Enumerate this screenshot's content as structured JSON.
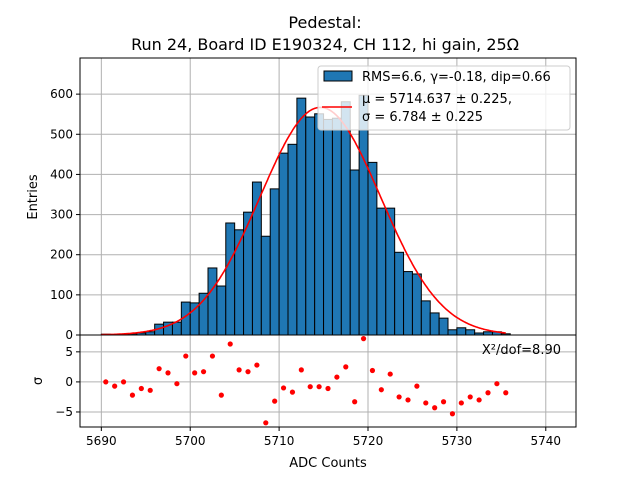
{
  "chart_data": [
    {
      "type": "bar",
      "title_line1": "Pedestal:",
      "title_line2": "Run 24, Board ID E190324, CH 112, hi gain, 25Ω",
      "xlabel": "ADC Counts",
      "ylabel": "Entries",
      "xlim": [
        5687.6,
        5743.4
      ],
      "ylim": [
        0,
        690
      ],
      "grid": true,
      "bin_edges_start": 5690,
      "bin_width": 1,
      "values": [
        2,
        1,
        2,
        3,
        5,
        8,
        27,
        32,
        32,
        82,
        80,
        104,
        167,
        122,
        279,
        262,
        306,
        381,
        246,
        364,
        453,
        475,
        590,
        543,
        551,
        537,
        540,
        581,
        411,
        597,
        430,
        316,
        316,
        206,
        158,
        152,
        85,
        55,
        42,
        13,
        18,
        13,
        5,
        8,
        8,
        3
      ],
      "yticks": [
        0,
        100,
        200,
        300,
        400,
        500,
        600
      ],
      "ytick_labels": [
        "0",
        "100",
        "200",
        "300",
        "400",
        "500",
        "600"
      ],
      "fit": {
        "type": "gaussian",
        "mu": 5714.637,
        "sigma": 6.784,
        "amplitude": 567,
        "range": [
          5690,
          5735.5
        ]
      },
      "legend": {
        "placement": "top-right",
        "hist_label": "RMS=6.6, γ=-0.18, dip=0.66",
        "fit_label_line1": "μ = 5714.637 ± 0.225,",
        "fit_label_line2": "σ = 6.784 ± 0.225"
      },
      "colors": {
        "bar": "#1f77b4",
        "fit": "#ff0000"
      }
    },
    {
      "type": "scatter",
      "ylabel": "σ",
      "xlabel": "ADC Counts",
      "xlim": [
        5687.6,
        5743.4
      ],
      "ylim": [
        -7.5,
        7.8
      ],
      "grid": true,
      "x_start": 5690.5,
      "x_step": 1,
      "values": [
        0,
        -0.7,
        0,
        -2.2,
        -1.1,
        -1.4,
        2.2,
        1.5,
        -0.3,
        4.3,
        1.5,
        1.7,
        4.3,
        -2.2,
        6.3,
        2.0,
        1.7,
        2.8,
        -6.8,
        -3.2,
        -1.0,
        -1.7,
        2.0,
        -0.8,
        -0.8,
        -1.1,
        0.8,
        2.5,
        -3.3,
        7.2,
        1.9,
        -1.3,
        1.3,
        -2.5,
        -3.0,
        -0.7,
        -3.5,
        -4.3,
        -3.3,
        -5.3,
        -3.5,
        -2.5,
        -3.0,
        -1.8,
        -0.3,
        -1.8
      ],
      "yticks": [
        -5,
        0,
        5
      ],
      "ytick_labels": [
        "−5",
        "0",
        "5"
      ],
      "xticks": [
        5690,
        5700,
        5710,
        5720,
        5730,
        5740
      ],
      "xtick_labels": [
        "5690",
        "5700",
        "5710",
        "5720",
        "5730",
        "5740"
      ],
      "annotation": "X²/dof=8.90",
      "colors": {
        "point": "#ff0000"
      }
    }
  ]
}
